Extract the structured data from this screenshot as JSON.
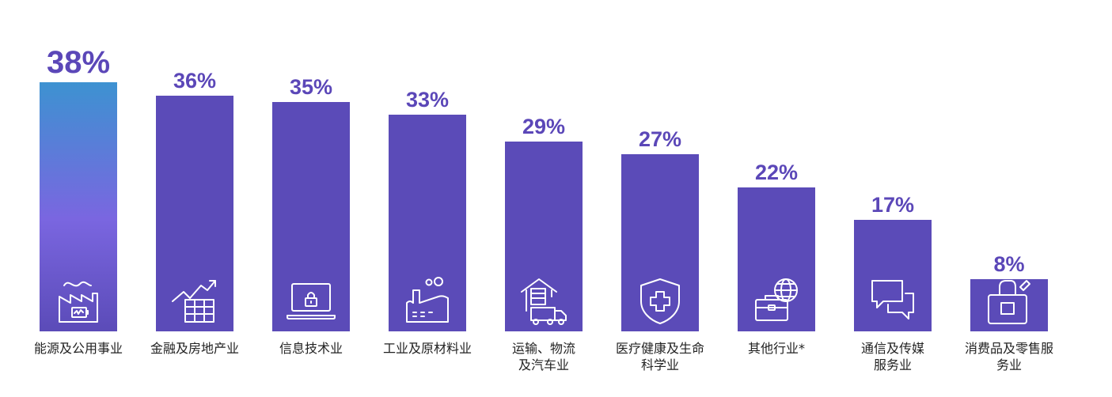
{
  "chart_data": {
    "type": "bar",
    "title": "",
    "xlabel": "",
    "ylabel": "",
    "ylim": [
      0,
      38
    ],
    "categories": [
      "能源及公用事业",
      "金融及房地产业",
      "信息技术业",
      "工业及原材料业",
      "运输、物流\n及汽车业",
      "医疗健康及生命\n科学业",
      "其他行业*",
      "通信及传媒\n服务业",
      "消费品及零售服\n务业"
    ],
    "values": [
      38,
      36,
      35,
      33,
      29,
      27,
      22,
      17,
      8
    ],
    "labels": [
      "38%",
      "36%",
      "35%",
      "33%",
      "29%",
      "27%",
      "22%",
      "17%",
      "8%"
    ],
    "icons": [
      "energy-icon",
      "finance-icon",
      "laptop-lock-icon",
      "factory-icon",
      "logistics-icon",
      "health-shield-icon",
      "briefcase-globe-icon",
      "chat-icon",
      "shopping-bag-icon"
    ]
  },
  "colors": {
    "bar": "#5b4bb8",
    "highlight_top": "#3d92d1",
    "highlight_mid": "#7a66e0",
    "highlight_bottom": "#5b4bb8",
    "value_text": "#5b47b8",
    "icon_stroke": "#ffffff"
  }
}
